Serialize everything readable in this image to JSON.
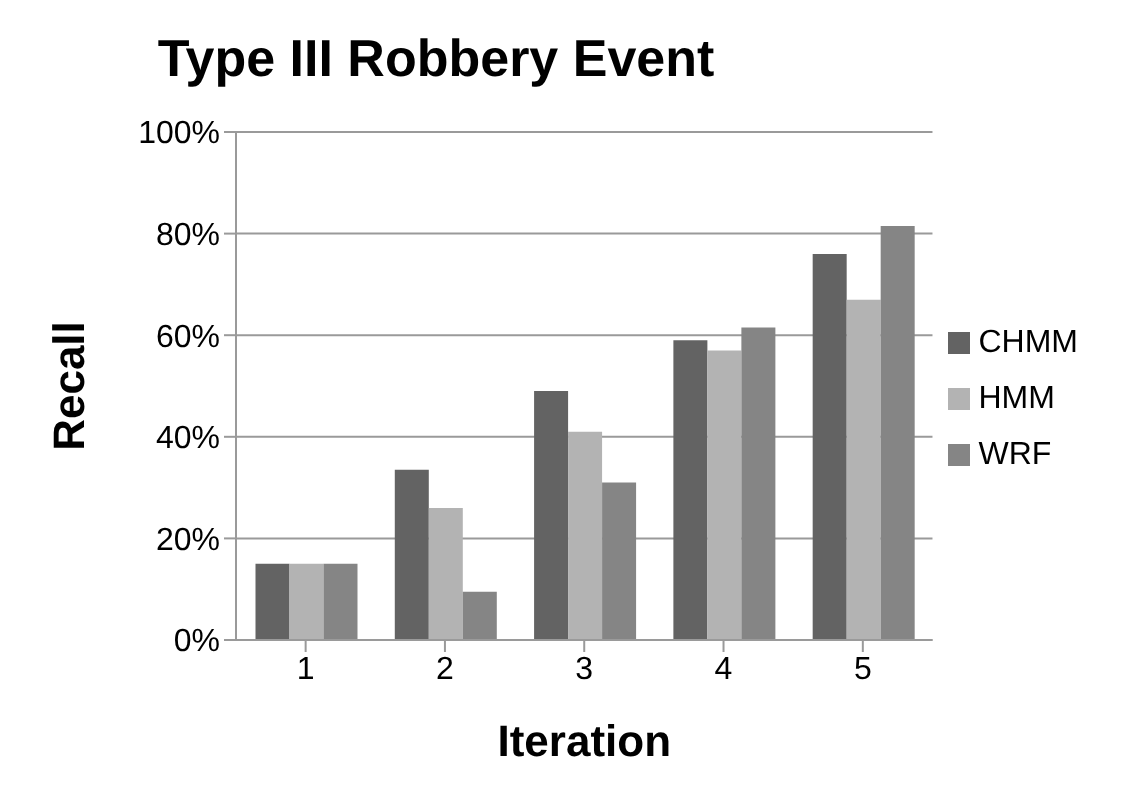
{
  "chart_data": {
    "type": "bar",
    "title": "Type III Robbery Event",
    "xlabel": "Iteration",
    "ylabel": "Recall",
    "categories": [
      "1",
      "2",
      "3",
      "4",
      "5"
    ],
    "series": [
      {
        "name": "CHMM",
        "color": "#636363",
        "values": [
          15,
          33.5,
          49,
          59,
          76
        ]
      },
      {
        "name": "HMM",
        "color": "#b3b3b3",
        "values": [
          15,
          26,
          41,
          57,
          67
        ]
      },
      {
        "name": "WRF",
        "color": "#858585",
        "values": [
          15,
          9.5,
          31,
          61.5,
          81.5
        ]
      }
    ],
    "ylim": [
      0,
      100
    ],
    "yticks": [
      {
        "value": 0,
        "label": "0%"
      },
      {
        "value": 20,
        "label": "20%"
      },
      {
        "value": 40,
        "label": "40%"
      },
      {
        "value": 60,
        "label": "60%"
      },
      {
        "value": 80,
        "label": "80%"
      },
      {
        "value": 100,
        "label": "100%"
      }
    ],
    "grid": "y",
    "legend": "right"
  }
}
